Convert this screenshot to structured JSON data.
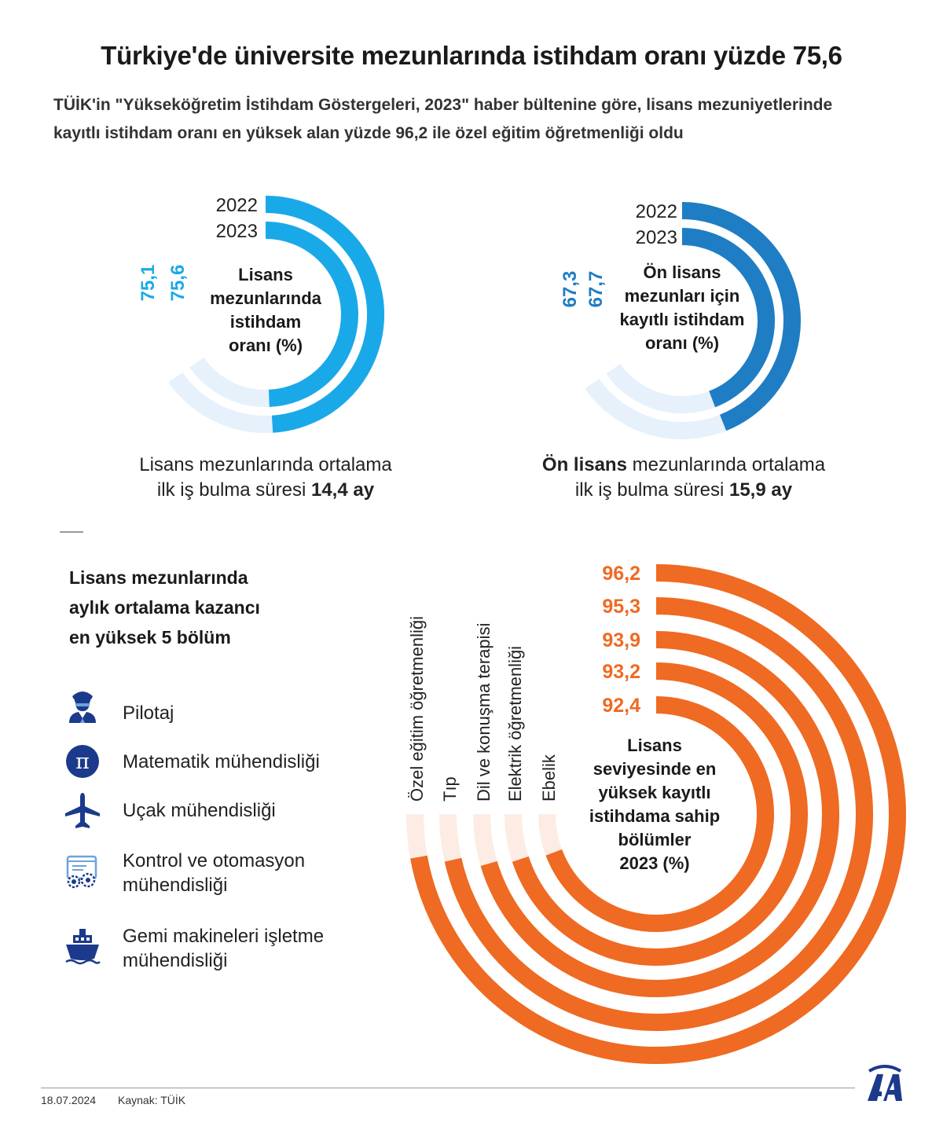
{
  "title": "Türkiye'de üniversite mezunlarında istihdam oranı yüzde 75,6",
  "subtitle_line1": "TÜİK'in \"Yükseköğretim İstihdam Göstergeleri, 2023\" haber bültenine göre, lisans mezuniyetlerinde",
  "subtitle_line2": "kayıtlı istihdam oranı en yüksek alan yüzde 96,2 ile özel eğitim öğretmenliği oldu",
  "lisans_avg": {
    "pre": "Lisans mezunlarında ortalama",
    "line2_pre": "ilk iş bulma süresi ",
    "value": "14,4 ay"
  },
  "onlisans_avg": {
    "bold1": "Ön lisans",
    "pre": " mezunlarında ortalama",
    "line2_pre": "ilk iş bulma süresi ",
    "value": "15,9 ay"
  },
  "kazanc": {
    "title_lines": [
      "Lisans mezunlarında",
      "aylık ortalama kazancı",
      "en yüksek 5 bölüm"
    ],
    "items": [
      {
        "icon": "pilot-icon",
        "lines": [
          "Pilotaj"
        ]
      },
      {
        "icon": "pi-icon",
        "lines": [
          "Matematik mühendisliği"
        ]
      },
      {
        "icon": "airplane-icon",
        "lines": [
          "Uçak mühendisliği"
        ]
      },
      {
        "icon": "control-gear-icon",
        "lines": [
          "Kontrol ve otomasyon",
          "mühendisliği"
        ]
      },
      {
        "icon": "ship-icon",
        "lines": [
          "Gemi makineleri işletme",
          "mühendisliği"
        ]
      }
    ]
  },
  "footer": {
    "date": "18.07.2024",
    "source": "Kaynak: TÜİK"
  },
  "colors": {
    "light_blue": "#1aa9e8",
    "dark_blue": "#1f7dc4",
    "orange": "#ef6a22",
    "navy": "#1b3a8c"
  },
  "chart_data": [
    {
      "type": "radial-bar",
      "title_lines": [
        "Lisans",
        "mezunlarında",
        "istihdam",
        "oranı (%)"
      ],
      "series": [
        {
          "name": "2022",
          "value": 75.1,
          "label": "75,1"
        },
        {
          "name": "2023",
          "value": 75.6,
          "label": "75,6"
        }
      ],
      "max": 100
    },
    {
      "type": "radial-bar",
      "title_lines": [
        "Ön lisans",
        "mezunları için",
        "kayıtlı istihdam",
        "oranı (%)"
      ],
      "series": [
        {
          "name": "2022",
          "value": 67.3,
          "label": "67,3"
        },
        {
          "name": "2023",
          "value": 67.7,
          "label": "67,7"
        }
      ],
      "max": 100
    },
    {
      "type": "radial-bar",
      "title_lines": [
        "Lisans",
        "seviyesinde en",
        "yüksek kayıtlı",
        "istihdama sahip",
        "bölümler",
        "2023 (%)"
      ],
      "categories": [
        "Özel eğitim öğretmenliği",
        "Tıp",
        "Dil ve konuşma terapisi",
        "Elektrik öğretmenliği",
        "Ebelik"
      ],
      "values": [
        96.2,
        95.3,
        93.9,
        93.2,
        92.4
      ],
      "labels": [
        "96,2",
        "95,3",
        "93,9",
        "93,2",
        "92,4"
      ],
      "max": 100
    }
  ]
}
